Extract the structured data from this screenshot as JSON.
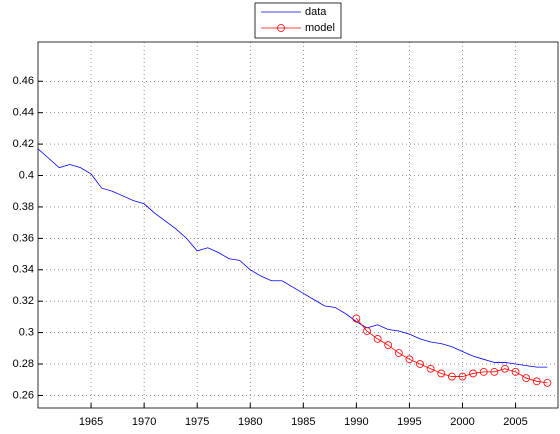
{
  "chart_data": {
    "type": "line",
    "x": [
      1960,
      1961,
      1962,
      1963,
      1964,
      1965,
      1966,
      1967,
      1968,
      1969,
      1970,
      1971,
      1972,
      1973,
      1974,
      1975,
      1976,
      1977,
      1978,
      1979,
      1980,
      1981,
      1982,
      1983,
      1984,
      1985,
      1986,
      1987,
      1988,
      1989,
      1990,
      1991,
      1992,
      1993,
      1994,
      1995,
      1996,
      1997,
      1998,
      1999,
      2000,
      2001,
      2002,
      2003,
      2004,
      2005,
      2006,
      2007,
      2008
    ],
    "series": [
      {
        "name": "data",
        "color": "#0000ff",
        "marker": false,
        "values": [
          0.417,
          0.411,
          0.405,
          0.407,
          0.405,
          0.401,
          0.392,
          0.39,
          0.387,
          0.384,
          0.382,
          0.376,
          0.371,
          0.366,
          0.36,
          0.352,
          0.354,
          0.351,
          0.347,
          0.346,
          0.34,
          0.336,
          0.333,
          0.333,
          0.329,
          0.325,
          0.321,
          0.317,
          0.316,
          0.312,
          0.307,
          0.303,
          0.305,
          0.302,
          0.301,
          0.299,
          0.296,
          0.294,
          0.293,
          0.291,
          0.288,
          0.285,
          0.283,
          0.281,
          0.281,
          0.28,
          0.279,
          0.278,
          0.278
        ]
      },
      {
        "name": "model",
        "color": "#ff0000",
        "marker": true,
        "values": [
          null,
          null,
          null,
          null,
          null,
          null,
          null,
          null,
          null,
          null,
          null,
          null,
          null,
          null,
          null,
          null,
          null,
          null,
          null,
          null,
          null,
          null,
          null,
          null,
          null,
          null,
          null,
          null,
          null,
          null,
          0.309,
          0.301,
          0.296,
          0.292,
          0.287,
          0.283,
          0.28,
          0.277,
          0.274,
          0.272,
          0.272,
          0.274,
          0.275,
          0.275,
          0.277,
          0.275,
          0.271,
          0.269,
          0.268
        ]
      }
    ],
    "xlim": [
      1960,
      2009
    ],
    "ylim": [
      0.252,
      0.485
    ],
    "xticks": [
      1965,
      1970,
      1975,
      1980,
      1985,
      1990,
      1995,
      2000,
      2005
    ],
    "yticks": [
      0.26,
      0.28,
      0.3,
      0.32,
      0.34,
      0.36,
      0.38,
      0.4,
      0.42,
      0.44,
      0.46
    ],
    "grid": true,
    "legend": "top"
  }
}
